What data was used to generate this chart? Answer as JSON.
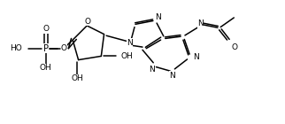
{
  "bg": "#ffffff",
  "lc": "#000000",
  "lw": 1.1,
  "fs": 6.5,
  "fig_w": 3.22,
  "fig_h": 1.4,
  "dpi": 100,
  "xlim": [
    0,
    10.0
  ],
  "ylim": [
    0,
    4.35
  ]
}
